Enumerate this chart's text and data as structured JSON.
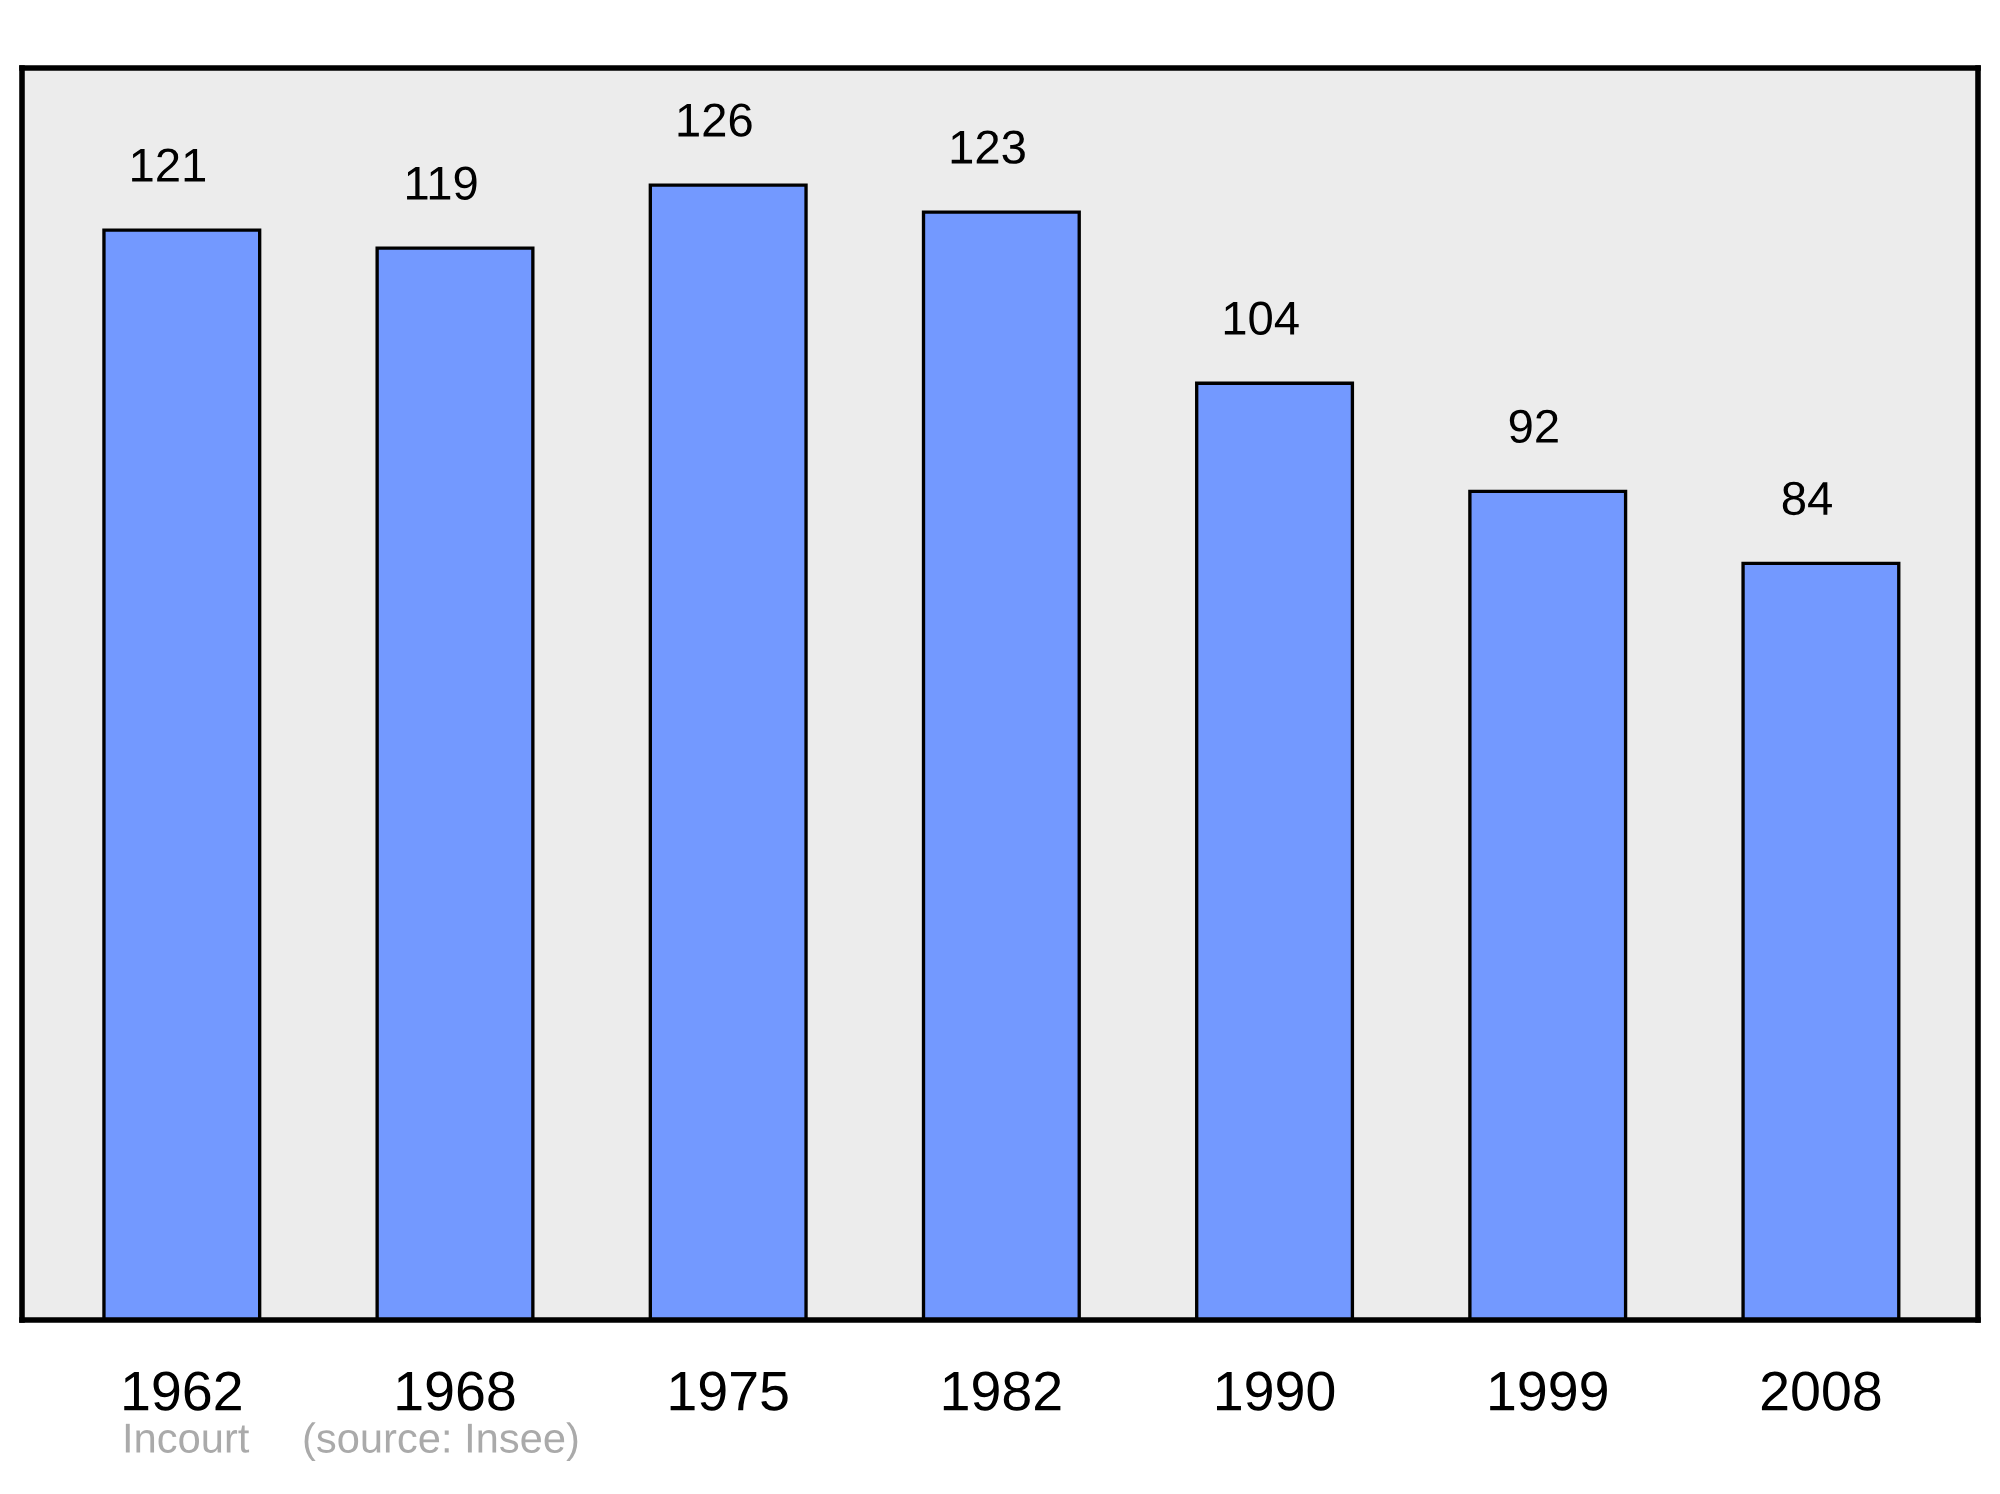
{
  "chart_data": {
    "type": "bar",
    "categories": [
      "1962",
      "1968",
      "1975",
      "1982",
      "1990",
      "1999",
      "2008"
    ],
    "values": [
      121,
      119,
      126,
      123,
      104,
      92,
      84
    ],
    "color": "#7399ff",
    "ylim": [
      0,
      139
    ],
    "data_labels": true,
    "tick_labels": "x",
    "grid": false,
    "legend": false,
    "annotations": [
      "Incourt",
      "(source: Insee)"
    ]
  }
}
